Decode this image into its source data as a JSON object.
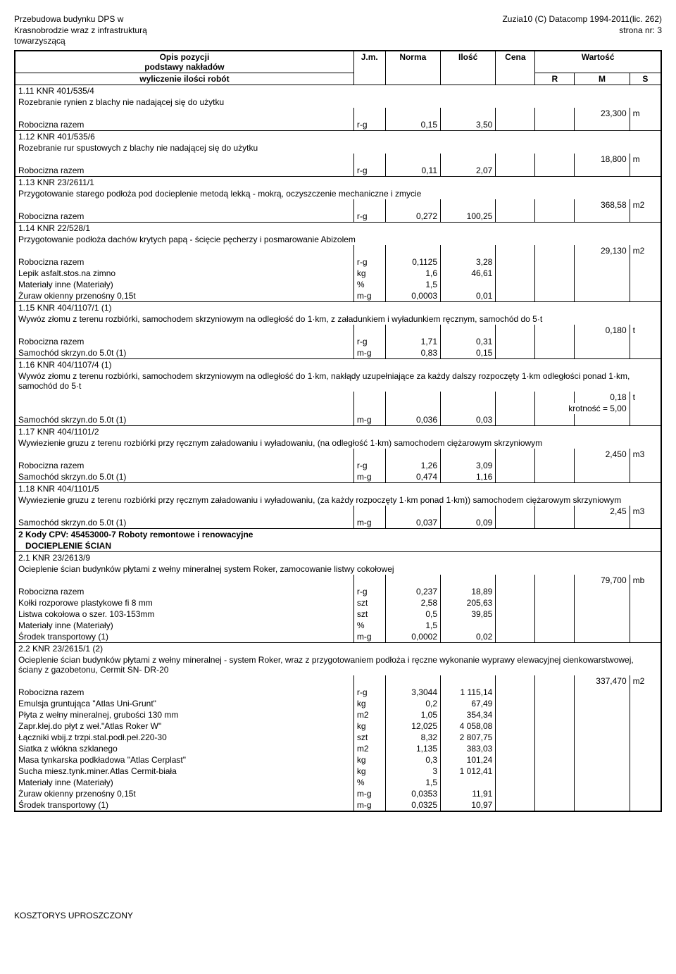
{
  "header": {
    "left": [
      "Przebudowa budynku DPS w",
      "Krasnobrodzie wraz z infrastrukturą",
      "towarzyszącą"
    ],
    "right": [
      "Zuzia10 (C) Datacomp 1994-2011(lic. 262)",
      "strona nr:      3"
    ]
  },
  "columns": {
    "desc_line1": "Opis pozycji",
    "desc_line2": "podstawy nakładów",
    "desc_line3": "wyliczenie ilości robót",
    "jm": "J.m.",
    "norma": "Norma",
    "ilosc": "Ilość",
    "cena": "Cena",
    "wartosc": "Wartość",
    "r": "R",
    "m": "M",
    "s": "S"
  },
  "items": [
    {
      "code": "1.11 KNR 401/535/4",
      "desc": "Rozebranie rynien z blachy nie nadającej się do użytku",
      "total": "23,300",
      "unit": "m",
      "sub": [
        {
          "name": "Robocizna razem",
          "jm": "r-g",
          "norma": "0,15",
          "ilosc": "3,50"
        }
      ]
    },
    {
      "code": "1.12 KNR 401/535/6",
      "desc": "Rozebranie rur spustowych z blachy nie nadającej się do użytku",
      "total": "18,800",
      "unit": "m",
      "sub": [
        {
          "name": "Robocizna razem",
          "jm": "r-g",
          "norma": "0,11",
          "ilosc": "2,07"
        }
      ]
    },
    {
      "code": "1.13 KNR 23/2611/1",
      "desc": "Przygotowanie starego podłoża pod docieplenie metodą lekką - mokrą, oczyszczenie  mechaniczne i zmycie",
      "total": "368,58",
      "unit": "m2",
      "sub": [
        {
          "name": "Robocizna razem",
          "jm": "r-g",
          "norma": "0,272",
          "ilosc": "100,25"
        }
      ]
    },
    {
      "code": "1.14 KNR 22/528/1",
      "desc": "Przygotowanie podłoża dachów krytych papą - ścięcie pęcherzy i posmarowanie Abizolem",
      "total": "29,130",
      "unit": "m2",
      "sub": [
        {
          "name": "Robocizna razem",
          "jm": "r-g",
          "norma": "0,1125",
          "ilosc": "3,28"
        },
        {
          "name": "Lepik asfalt.stos.na zimno",
          "jm": "kg",
          "norma": "1,6",
          "ilosc": "46,61"
        },
        {
          "name": "Materiały inne (Materiały)",
          "jm": "%",
          "norma": "1,5",
          "ilosc": ""
        },
        {
          "name": "Żuraw okienny przenośny 0,15t",
          "jm": "m-g",
          "norma": "0,0003",
          "ilosc": "0,01"
        }
      ]
    },
    {
      "code": "1.15 KNR 404/1107/1 (1)",
      "desc": "Wywóz złomu z terenu rozbiórki, samochodem skrzyniowym na odległość do 1·km, z załadunkiem i wyładunkiem ręcznym, samochód do 5·t",
      "total": "0,180",
      "unit": "t",
      "sub": [
        {
          "name": "Robocizna razem",
          "jm": "r-g",
          "norma": "1,71",
          "ilosc": "0,31"
        },
        {
          "name": "Samochód skrzyn.do 5.0t (1)",
          "jm": "m-g",
          "norma": "0,83",
          "ilosc": "0,15"
        }
      ]
    },
    {
      "code": "1.16 KNR 404/1107/4 (1)",
      "desc": "Wywóz złomu z terenu rozbiórki, samochodem skrzyniowym na odległość do 1·km, nakłądy uzupełniające za każdy dalszy rozpoczęty 1·km odległości ponad 1·km, samochód do 5·t",
      "total": "0,18",
      "unit": "t",
      "note": "krotność =  5,00",
      "sub": [
        {
          "name": "Samochód skrzyn.do 5.0t (1)",
          "jm": "m-g",
          "norma": "0,036",
          "ilosc": "0,03"
        }
      ]
    },
    {
      "code": "1.17 KNR 404/1101/2",
      "desc": "Wywiezienie gruzu z terenu rozbiórki przy ręcznym załadowaniu i wyładowaniu, (na odległość 1·km) samochodem ciężarowym skrzyniowym",
      "total": "2,450",
      "unit": "m3",
      "sub": [
        {
          "name": "Robocizna razem",
          "jm": "r-g",
          "norma": "1,26",
          "ilosc": "3,09"
        },
        {
          "name": "Samochód skrzyn.do 5.0t (1)",
          "jm": "m-g",
          "norma": "0,474",
          "ilosc": "1,16"
        }
      ]
    },
    {
      "code": "1.18 KNR 404/1101/5",
      "desc": "Wywiezienie gruzu z terenu rozbiórki przy ręcznym załadowaniu i wyładowaniu, (za każdy rozpoczęty 1·km ponad 1·km)) samochodem ciężarowym skrzyniowym",
      "total": "2,45",
      "unit": "m3",
      "sub": [
        {
          "name": "Samochód skrzyn.do 5.0t (1)",
          "jm": "m-g",
          "norma": "0,037",
          "ilosc": "0,09"
        }
      ]
    }
  ],
  "section2": {
    "title_l1": "2 Kody CPV: 45453000-7  Roboty remontowe i renowacyjne",
    "title_l2": "   DOCIEPLENIE ŚCIAN"
  },
  "items2": [
    {
      "code": "2.1 KNR 23/2613/9",
      "desc": "Ocieplenie ścian budynków płytami z wełny mineralnej system Roker, zamocowanie listwy cokołowej",
      "total": "79,700",
      "unit": "mb",
      "sub": [
        {
          "name": "Robocizna razem",
          "jm": "r-g",
          "norma": "0,237",
          "ilosc": "18,89"
        },
        {
          "name": "Kołki rozporowe plastykowe fi 8 mm",
          "jm": "szt",
          "norma": "2,58",
          "ilosc": "205,63"
        },
        {
          "name": "Listwa cokołowa o szer. 103-153mm",
          "jm": "szt",
          "norma": "0,5",
          "ilosc": "39,85"
        },
        {
          "name": "Materiały inne (Materiały)",
          "jm": "%",
          "norma": "1,5",
          "ilosc": ""
        },
        {
          "name": "Środek transportowy (1)",
          "jm": "m-g",
          "norma": "0,0002",
          "ilosc": "0,02"
        }
      ]
    },
    {
      "code": "2.2 KNR 23/2615/1 (2)",
      "desc": "Ocieplenie ścian budynków płytami z wełny mineralnej - system Roker, wraz z przygotowaniem podłoża i ręczne wykonanie wyprawy elewacyjnej cienkowarstwowej, ściany z gazobetonu, Cermit SN- DR-20",
      "total": "337,470",
      "unit": "m2",
      "sub": [
        {
          "name": "Robocizna razem",
          "jm": "r-g",
          "norma": "3,3044",
          "ilosc": "1 115,14"
        },
        {
          "name": "Emulsja gruntująca \"Atlas Uni-Grunt\"",
          "jm": "kg",
          "norma": "0,2",
          "ilosc": "67,49"
        },
        {
          "name": "Płyta z wełny mineralnej, grubości 130 mm",
          "jm": "m2",
          "norma": "1,05",
          "ilosc": "354,34"
        },
        {
          "name": "Zapr.klej.do płyt z weł.\"Atlas Roker W\"",
          "jm": "kg",
          "norma": "12,025",
          "ilosc": "4 058,08"
        },
        {
          "name": "Łączniki wbij.z trzpi.stal.podł.peł.220-30",
          "jm": "szt",
          "norma": "8,32",
          "ilosc": "2 807,75"
        },
        {
          "name": "Siatka z włókna szklanego",
          "jm": "m2",
          "norma": "1,135",
          "ilosc": "383,03"
        },
        {
          "name": "Masa tynkarska podkładowa \"Atlas Cerplast\"",
          "jm": "kg",
          "norma": "0,3",
          "ilosc": "101,24"
        },
        {
          "name": "Sucha miesz.tynk.miner.Atlas Cermit-biała",
          "jm": "kg",
          "norma": "3",
          "ilosc": "1 012,41"
        },
        {
          "name": "Materiały inne (Materiały)",
          "jm": "%",
          "norma": "1,5",
          "ilosc": ""
        },
        {
          "name": "Żuraw okienny przenośny 0,15t",
          "jm": "m-g",
          "norma": "0,0353",
          "ilosc": "11,91"
        },
        {
          "name": "Środek transportowy (1)",
          "jm": "m-g",
          "norma": "0,0325",
          "ilosc": "10,97"
        }
      ]
    }
  ],
  "footer": "KOSZTORYS UPROSZCZONY"
}
